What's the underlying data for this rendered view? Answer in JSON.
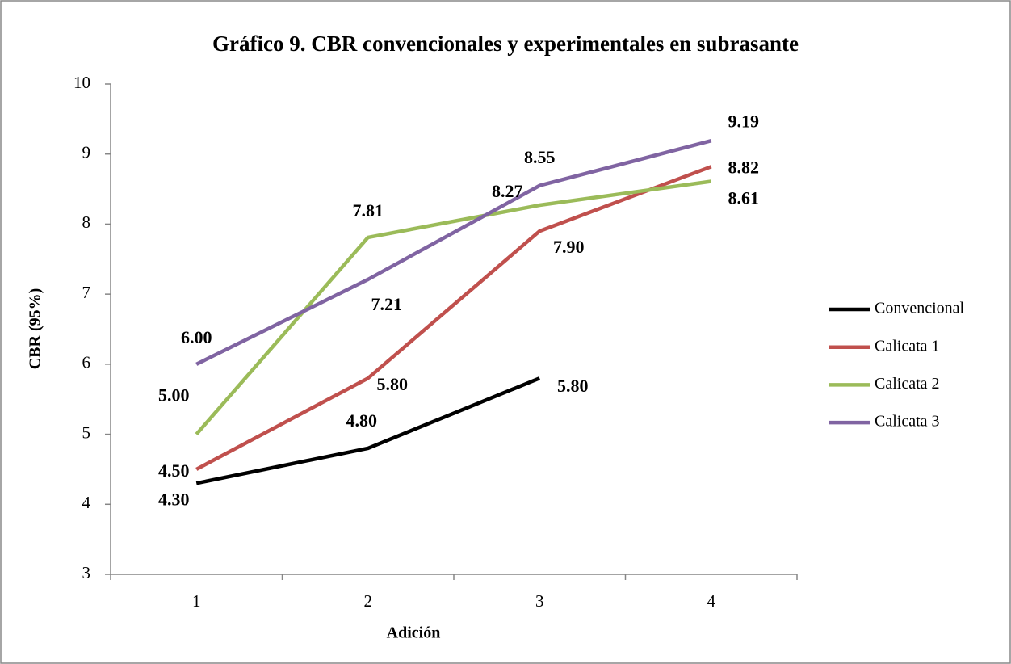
{
  "chart_data": {
    "type": "line",
    "title": "Gráfico 9. CBR convencionales y experimentales en subrasante",
    "x_label": "Adición",
    "y_label": "CBR (95%)",
    "categories": [
      "1",
      "2",
      "3",
      "4"
    ],
    "ylim": [
      3,
      10
    ],
    "yticks": [
      3,
      4,
      5,
      6,
      7,
      8,
      9,
      10
    ],
    "legend": "right",
    "series": [
      {
        "name": "Convencional",
        "color": "#000000",
        "values": [
          4.3,
          4.8,
          5.8,
          null
        ],
        "value_labels": [
          "4.30",
          "4.80",
          "5.80",
          null
        ]
      },
      {
        "name": "Calicata 1",
        "color": "#c0504d",
        "values": [
          4.5,
          5.8,
          7.9,
          8.82
        ],
        "value_labels": [
          "4.50",
          "5.80",
          "7.90",
          "8.82"
        ]
      },
      {
        "name": "Calicata 2",
        "color": "#9bbb59",
        "values": [
          5.0,
          7.81,
          8.27,
          8.61
        ],
        "value_labels": [
          "5.00",
          "7.81",
          "8.27",
          "8.61"
        ]
      },
      {
        "name": "Calicata 3",
        "color": "#8064a2",
        "values": [
          6.0,
          7.21,
          8.55,
          9.19
        ],
        "value_labels": [
          "6.00",
          "7.21",
          "8.55",
          "9.19"
        ]
      }
    ]
  }
}
